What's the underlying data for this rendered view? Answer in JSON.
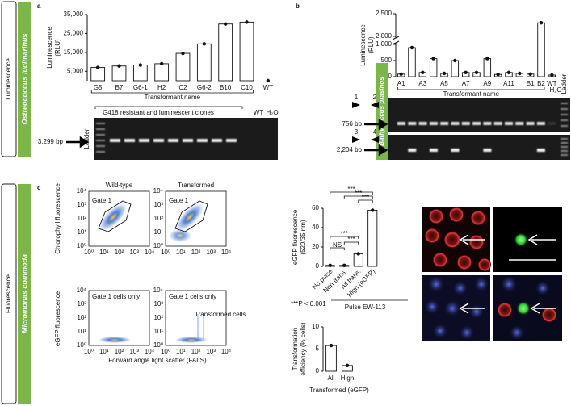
{
  "figure": {
    "panel_labels": [
      "a",
      "b",
      "c"
    ],
    "rows": [
      "Luminescence",
      "Fluorescence"
    ],
    "species": [
      "Ostreococcus lucimarinus",
      "Bathycoccus prasinos",
      "Micromonas commoda"
    ],
    "gel_a": {
      "ladder": "Ladder",
      "wt": "WT",
      "h2o": "H₂O",
      "size": "3,299 bp",
      "clones": "G418 resistant and luminescent clones"
    },
    "gel_b": {
      "ladder": "Ladder",
      "h2o": "H₂O",
      "sizes": [
        "756 bp",
        "2,204 bp"
      ],
      "primers": [
        "1",
        "2",
        "3",
        "4"
      ]
    },
    "flow": {
      "ylabels": [
        "Chlorophyll fluorescence",
        "eGFP fluorescence"
      ],
      "xlabel": "Forward angle light scatter (FALS)",
      "titles": [
        "Wild-type",
        "Transformed"
      ],
      "gate": "Gate 1",
      "gated": "Gate 1 cells only",
      "transformed": "Transformed cells",
      "ticks": [
        "10⁰",
        "10¹",
        "10²",
        "10³",
        "10⁴"
      ]
    }
  },
  "chart_data": [
    {
      "type": "bar",
      "ylabel": [
        "Luminescence",
        "(RLU)"
      ],
      "xlabel": "Transformant name",
      "categories": [
        "G5",
        "B7",
        "G6-1",
        "H2",
        "C2",
        "G6-2",
        "B10",
        "C10",
        "WT"
      ],
      "values": [
        7000,
        7800,
        8300,
        9000,
        14500,
        19500,
        30000,
        31000,
        0
      ],
      "ylim": [
        0,
        35000
      ],
      "yticks": [
        {
          "value": 5000,
          "label": "5,000"
        },
        {
          "value": 15000,
          "label": "15,000"
        },
        {
          "value": 25000,
          "label": "25,000"
        },
        {
          "value": 35000,
          "label": "35,000"
        }
      ]
    },
    {
      "type": "bar",
      "ylabel": [
        "Luminescence",
        "(RLU)"
      ],
      "xlabel": "Transformant name",
      "categories": [
        "A1",
        null,
        "A3",
        null,
        "A5",
        null,
        "A7",
        null,
        "A9",
        null,
        "A11",
        null,
        "B1",
        "B2",
        "WT"
      ],
      "values": [
        80,
        900,
        130,
        560,
        100,
        500,
        130,
        130,
        560,
        70,
        130,
        100,
        80,
        2300,
        50
      ],
      "ylim": [
        0,
        2500
      ],
      "ybreak": [
        1000,
        2000
      ],
      "yticks": [
        0,
        500,
        {
          "value": 1000,
          "label": "1,000"
        },
        {
          "value": 2000,
          "label": "2,000"
        },
        {
          "value": 2500,
          "label": "2,500"
        }
      ]
    },
    {
      "type": "bar",
      "ylabel": [
        "eGFP fluorescence",
        "(520/35 nm)"
      ],
      "categories": [
        "No pulse",
        "Non-trans.",
        "All trans.",
        "High (eGFP)"
      ],
      "values": [
        1,
        1,
        13,
        58
      ],
      "ylim": [
        0,
        60
      ],
      "yticks": [
        0,
        20,
        40,
        60
      ],
      "significance": [
        "***",
        "***",
        "***",
        "***",
        "***",
        "NS"
      ],
      "note": "***P < 0.001",
      "group_label": "Pulse EW-113"
    },
    {
      "type": "bar",
      "ylabel": [
        "Transformation",
        "efficiency (% cells)"
      ],
      "xlabel": "Transformed (eGFP)",
      "categories": [
        "All",
        "High"
      ],
      "values": [
        5.8,
        1.3
      ],
      "ylim": [
        0,
        10
      ],
      "yticks": [
        0,
        5,
        10
      ]
    }
  ]
}
